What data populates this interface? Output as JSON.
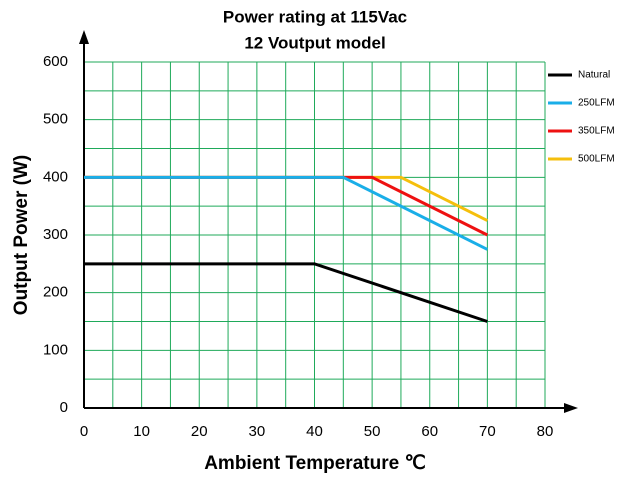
{
  "chart_data": {
    "type": "line",
    "title": [
      "Power rating at 115Vac",
      "12 Voutput model"
    ],
    "x_label": "Ambient Temperature ℃",
    "y_label": "Output Power (W)",
    "xlim": [
      0,
      80
    ],
    "xticks": [
      0,
      10,
      20,
      30,
      40,
      50,
      60,
      70,
      80
    ],
    "ylim": [
      0,
      600
    ],
    "yticks": [
      0,
      100,
      200,
      300,
      400,
      500,
      600
    ],
    "grid": true,
    "grid_color": "#1faa5a",
    "legend": "right",
    "series": [
      {
        "name": "Natural",
        "color": "#000000",
        "x": [
          0,
          40,
          70
        ],
        "values": [
          250,
          250,
          150
        ]
      },
      {
        "name": "250LFM",
        "color": "#1aaee8",
        "x": [
          0,
          45,
          70
        ],
        "values": [
          400,
          400,
          275
        ]
      },
      {
        "name": "350LFM",
        "color": "#ee1111",
        "x": [
          0,
          50,
          70
        ],
        "values": [
          400,
          400,
          300
        ]
      },
      {
        "name": "500LFM",
        "color": "#f5bf0c",
        "x": [
          0,
          55,
          70
        ],
        "values": [
          400,
          400,
          325
        ]
      }
    ]
  }
}
